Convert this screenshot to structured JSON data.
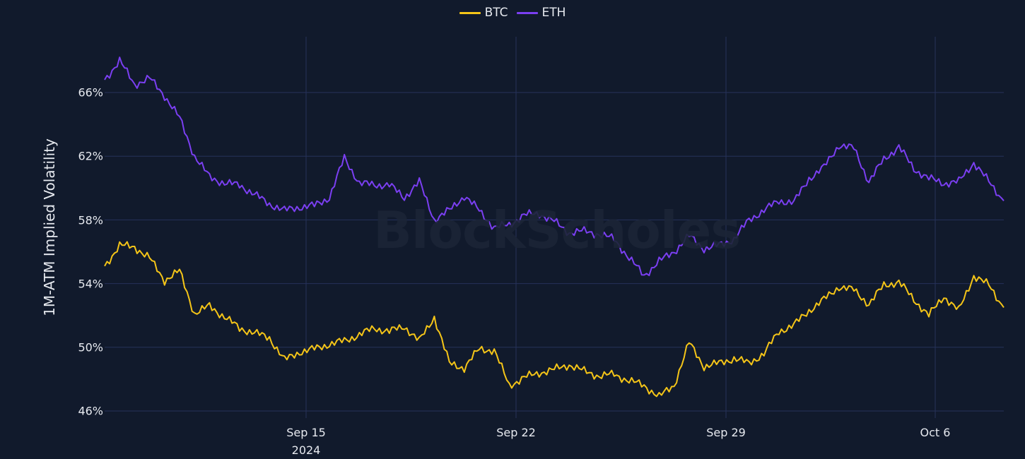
{
  "legend": [
    {
      "label": "BTC",
      "color": "#f5c518"
    },
    {
      "label": "ETH",
      "color": "#7b3ff2"
    }
  ],
  "watermark": "BlockScholes",
  "y_axis": {
    "title": "1M-ATM Implied Volatility",
    "ticks": [
      "66%",
      "62%",
      "58%",
      "54%",
      "50%",
      "46%"
    ]
  },
  "x_axis": {
    "ticks": [
      {
        "label": "Sep 15",
        "sub": "2024"
      },
      {
        "label": "Sep 22",
        "sub": ""
      },
      {
        "label": "Sep 29",
        "sub": ""
      },
      {
        "label": "Oct 6",
        "sub": ""
      }
    ]
  },
  "colors": {
    "background": "#111a2c",
    "grid": "#26325a",
    "btc": "#f5c518",
    "eth": "#7b3ff2",
    "text": "#e6e9ef"
  },
  "chart_data": {
    "type": "line",
    "title": "",
    "xlabel": "",
    "ylabel": "1M-ATM Implied Volatility",
    "ylim": [
      45.7,
      68.8
    ],
    "y_unit": "%",
    "xrange": [
      "2024-09-08T07:00",
      "2024-10-08T07:00"
    ],
    "grid": true,
    "legend_position": "top-center",
    "x_tick_labels": [
      "Sep 15 2024",
      "Sep 22",
      "Sep 29",
      "Oct 6"
    ],
    "y_tick_labels": [
      "46%",
      "50%",
      "54%",
      "58%",
      "62%",
      "66%"
    ],
    "x": [
      "Sep 8.3",
      "Sep 8.8",
      "Sep 9.3",
      "Sep 9.8",
      "Sep 10.3",
      "Sep 10.8",
      "Sep 11.3",
      "Sep 11.8",
      "Sep 12.3",
      "Sep 12.8",
      "Sep 13.3",
      "Sep 13.8",
      "Sep 14.3",
      "Sep 14.8",
      "Sep 15.3",
      "Sep 15.8",
      "Sep 16.3",
      "Sep 16.8",
      "Sep 17.3",
      "Sep 17.8",
      "Sep 18.3",
      "Sep 18.8",
      "Sep 19.3",
      "Sep 19.8",
      "Sep 20.3",
      "Sep 20.8",
      "Sep 21.3",
      "Sep 21.8",
      "Sep 22.3",
      "Sep 22.8",
      "Sep 23.3",
      "Sep 23.8",
      "Sep 24.3",
      "Sep 24.8",
      "Sep 25.3",
      "Sep 25.8",
      "Sep 26.3",
      "Sep 26.8",
      "Sep 27.3",
      "Sep 27.8",
      "Sep 28.3",
      "Sep 28.8",
      "Sep 29.3",
      "Sep 29.8",
      "Sep 30.3",
      "Sep 30.8",
      "Oct 1.3",
      "Oct 1.8",
      "Oct 2.3",
      "Oct 2.8",
      "Oct 3.3",
      "Oct 3.8",
      "Oct 4.3",
      "Oct 4.8",
      "Oct 5.3",
      "Oct 5.8",
      "Oct 6.3",
      "Oct 6.8",
      "Oct 7.3",
      "Oct 7.8",
      "Oct 8.3"
    ],
    "series": [
      {
        "name": "BTC",
        "color": "#f5c518",
        "values": [
          55.1,
          56.4,
          56.3,
          55.6,
          54.2,
          54.8,
          52.1,
          52.6,
          51.9,
          51.2,
          50.9,
          50.6,
          49.2,
          49.7,
          49.9,
          50.2,
          50.4,
          50.8,
          51.2,
          51.0,
          51.3,
          50.4,
          51.9,
          49.0,
          48.7,
          49.9,
          49.8,
          47.6,
          48.1,
          48.4,
          48.6,
          48.9,
          48.5,
          48.2,
          48.3,
          47.9,
          47.6,
          46.9,
          47.6,
          50.3,
          48.8,
          49.0,
          49.3,
          49.0,
          49.6,
          51.0,
          51.4,
          52.3,
          53.0,
          53.8,
          53.6,
          52.7,
          53.9,
          54.1,
          53.0,
          52.0,
          53.2,
          52.3,
          54.5,
          53.9,
          52.5
        ]
      },
      {
        "name": "ETH",
        "color": "#7b3ff2",
        "values": [
          66.8,
          68.0,
          66.5,
          66.9,
          65.8,
          64.4,
          62.0,
          60.7,
          60.3,
          60.2,
          59.6,
          59.0,
          58.6,
          58.8,
          58.9,
          59.4,
          61.9,
          60.3,
          60.2,
          60.2,
          59.4,
          60.4,
          58.0,
          58.6,
          59.5,
          58.6,
          57.5,
          57.7,
          58.3,
          58.4,
          57.9,
          57.2,
          57.3,
          57.1,
          56.8,
          55.6,
          54.5,
          55.4,
          56.0,
          57.0,
          56.2,
          56.4,
          56.8,
          58.0,
          58.6,
          59.2,
          59.1,
          60.6,
          61.3,
          62.7,
          62.5,
          60.4,
          61.8,
          62.6,
          61.2,
          60.6,
          60.3,
          60.4,
          61.6,
          60.4,
          59.2
        ]
      }
    ]
  }
}
